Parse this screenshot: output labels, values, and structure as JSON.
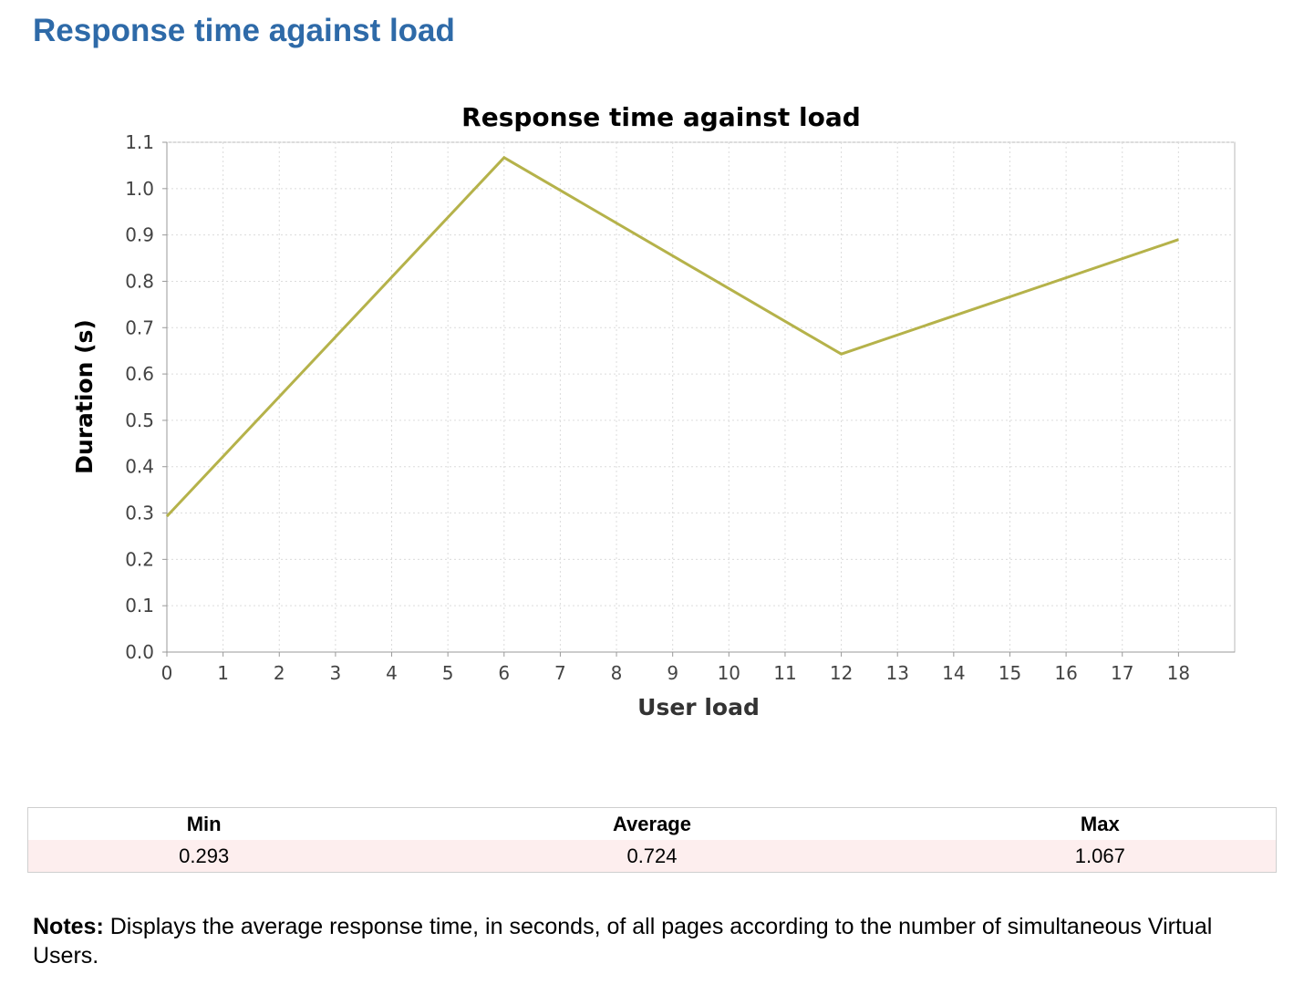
{
  "page": {
    "title": "Response time against load"
  },
  "chart_data": {
    "type": "line",
    "title": "Response time against load",
    "xlabel": "User load",
    "ylabel": "Duration (s)",
    "xlim": [
      0,
      19
    ],
    "ylim": [
      0,
      1.1
    ],
    "xticks": [
      0,
      1,
      2,
      3,
      4,
      5,
      6,
      7,
      8,
      9,
      10,
      11,
      12,
      13,
      14,
      15,
      16,
      17,
      18
    ],
    "yticks": [
      0.0,
      0.1,
      0.2,
      0.3,
      0.4,
      0.5,
      0.6,
      0.7,
      0.8,
      0.9,
      1.0,
      1.1
    ],
    "grid": true,
    "series": [
      {
        "x": [
          0,
          6,
          12,
          18
        ],
        "y": [
          0.293,
          1.067,
          0.643,
          0.89
        ],
        "color": "#b5b24a"
      }
    ]
  },
  "stats": {
    "headers": [
      "Min",
      "Average",
      "Max"
    ],
    "values": [
      "0.293",
      "0.724",
      "1.067"
    ]
  },
  "notes": {
    "label": "Notes:",
    "text": " Displays the average response time, in seconds, of all pages according to the number of simultaneous Virtual Users."
  }
}
